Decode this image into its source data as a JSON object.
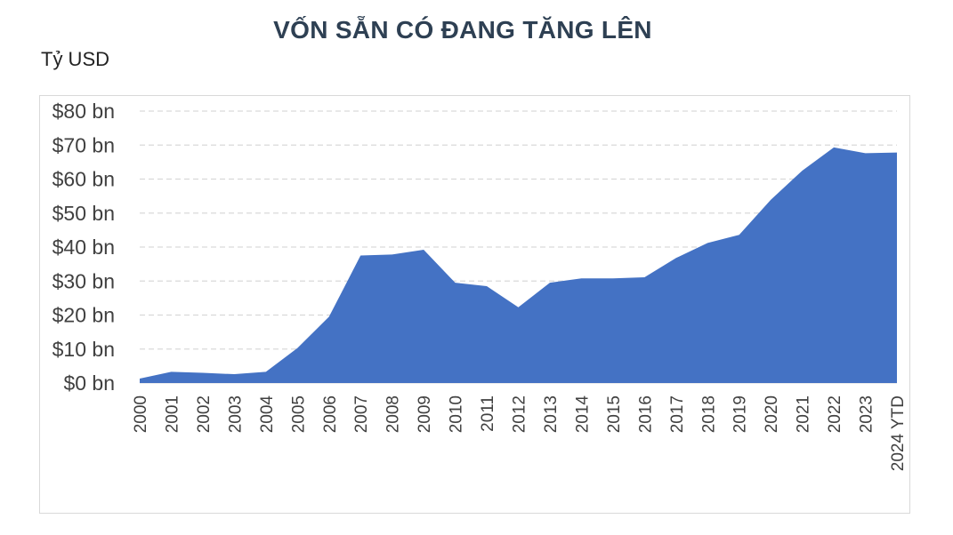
{
  "chart_data": {
    "type": "area",
    "title": "VỐN SẴN CÓ ĐANG TĂNG LÊN",
    "ylabel": "Tỷ USD",
    "xlabel": "",
    "x": [
      "2000",
      "2001",
      "2002",
      "2003",
      "2004",
      "2005",
      "2006",
      "2007",
      "2008",
      "2009",
      "2010",
      "2011",
      "2012",
      "2013",
      "2014",
      "2015",
      "2016",
      "2017",
      "2018",
      "2019",
      "2020",
      "2021",
      "2022",
      "2023",
      "2024 YTD"
    ],
    "values": [
      1.3,
      3.3,
      3.0,
      2.6,
      3.3,
      10.3,
      19.5,
      37.5,
      37.8,
      39.2,
      29.5,
      28.5,
      22.3,
      29.5,
      30.8,
      30.8,
      31.1,
      36.8,
      41.2,
      43.6,
      53.9,
      62.5,
      69.3,
      67.6,
      67.8
    ],
    "ylim": [
      0,
      80
    ],
    "yticks": [
      0,
      10,
      20,
      30,
      40,
      50,
      60,
      70,
      80
    ],
    "ytick_labels": [
      "$0 bn",
      "$10 bn",
      "$20 bn",
      "$30 bn",
      "$40 bn",
      "$50 bn",
      "$60 bn",
      "$70 bn",
      "$80 bn"
    ],
    "grid": true,
    "color": "#4472c4"
  }
}
